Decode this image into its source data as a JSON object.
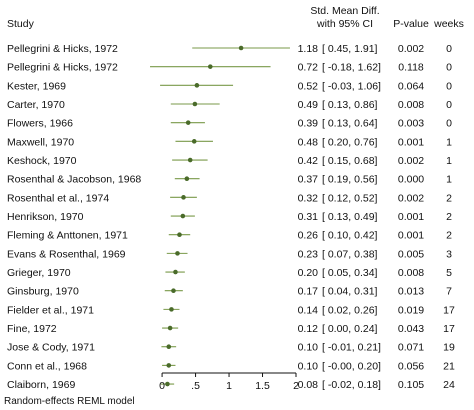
{
  "chart_data": {
    "type": "forest",
    "header": {
      "study": "Study",
      "effect_line1": "Std. Mean Diff.",
      "effect_line2": "with 95% CI",
      "pvalue": "P-value",
      "weeks": "weeks"
    },
    "x_ticks": [
      0,
      0.5,
      1,
      1.5,
      2
    ],
    "x_tick_labels": [
      "0",
      ".5",
      "1",
      "1.5",
      "2"
    ],
    "xlim": [
      -0.27,
      2.0
    ],
    "footnote": "Random-effects REML model",
    "colors": {
      "marker": "#4a6b2a",
      "ci_line": "#7a9a4a",
      "axis": "#111111"
    },
    "rows": [
      {
        "study": "Pellegrini & Hicks, 1972",
        "smd": 1.18,
        "lo": 0.45,
        "hi": 1.91,
        "smd_text": "1.18",
        "ci_text": "[ 0.45,  1.91]",
        "p": "0.002",
        "weeks": "0"
      },
      {
        "study": "Pellegrini & Hicks, 1972",
        "smd": 0.72,
        "lo": -0.18,
        "hi": 1.62,
        "smd_text": "0.72",
        "ci_text": "[ -0.18,  1.62]",
        "p": "0.118",
        "weeks": "0"
      },
      {
        "study": "Kester, 1969",
        "smd": 0.52,
        "lo": -0.03,
        "hi": 1.06,
        "smd_text": "0.52",
        "ci_text": "[ -0.03,  1.06]",
        "p": "0.064",
        "weeks": "0"
      },
      {
        "study": "Carter, 1970",
        "smd": 0.49,
        "lo": 0.13,
        "hi": 0.86,
        "smd_text": "0.49",
        "ci_text": "[ 0.13,  0.86]",
        "p": "0.008",
        "weeks": "0"
      },
      {
        "study": "Flowers, 1966",
        "smd": 0.39,
        "lo": 0.13,
        "hi": 0.64,
        "smd_text": "0.39",
        "ci_text": "[ 0.13,  0.64]",
        "p": "0.003",
        "weeks": "0"
      },
      {
        "study": "Maxwell, 1970",
        "smd": 0.48,
        "lo": 0.2,
        "hi": 0.76,
        "smd_text": "0.48",
        "ci_text": "[ 0.20,  0.76]",
        "p": "0.001",
        "weeks": "1"
      },
      {
        "study": "Keshock, 1970",
        "smd": 0.42,
        "lo": 0.15,
        "hi": 0.68,
        "smd_text": "0.42",
        "ci_text": "[ 0.15,  0.68]",
        "p": "0.002",
        "weeks": "1"
      },
      {
        "study": "Rosenthal & Jacobson, 1968",
        "smd": 0.37,
        "lo": 0.19,
        "hi": 0.56,
        "smd_text": "0.37",
        "ci_text": "[ 0.19,  0.56]",
        "p": "0.000",
        "weeks": "1"
      },
      {
        "study": "Rosenthal et al., 1974",
        "smd": 0.32,
        "lo": 0.12,
        "hi": 0.52,
        "smd_text": "0.32",
        "ci_text": "[ 0.12,  0.52]",
        "p": "0.002",
        "weeks": "2"
      },
      {
        "study": "Henrikson, 1970",
        "smd": 0.31,
        "lo": 0.13,
        "hi": 0.49,
        "smd_text": "0.31",
        "ci_text": "[ 0.13,  0.49]",
        "p": "0.001",
        "weeks": "2"
      },
      {
        "study": "Fleming & Anttonen, 1971",
        "smd": 0.26,
        "lo": 0.1,
        "hi": 0.42,
        "smd_text": "0.26",
        "ci_text": "[ 0.10,  0.42]",
        "p": "0.001",
        "weeks": "2"
      },
      {
        "study": "Evans & Rosenthal, 1969",
        "smd": 0.23,
        "lo": 0.07,
        "hi": 0.38,
        "smd_text": "0.23",
        "ci_text": "[ 0.07,  0.38]",
        "p": "0.005",
        "weeks": "3"
      },
      {
        "study": "Grieger, 1970",
        "smd": 0.2,
        "lo": 0.05,
        "hi": 0.34,
        "smd_text": "0.20",
        "ci_text": "[ 0.05,  0.34]",
        "p": "0.008",
        "weeks": "5"
      },
      {
        "study": "Ginsburg, 1970",
        "smd": 0.17,
        "lo": 0.04,
        "hi": 0.31,
        "smd_text": "0.17",
        "ci_text": "[ 0.04,  0.31]",
        "p": "0.013",
        "weeks": "7"
      },
      {
        "study": "Fielder et al., 1971",
        "smd": 0.14,
        "lo": 0.02,
        "hi": 0.26,
        "smd_text": "0.14",
        "ci_text": "[ 0.02,  0.26]",
        "p": "0.019",
        "weeks": "17"
      },
      {
        "study": "Fine, 1972",
        "smd": 0.12,
        "lo": 0.0,
        "hi": 0.24,
        "smd_text": "0.12",
        "ci_text": "[ 0.00,  0.24]",
        "p": "0.043",
        "weeks": "17"
      },
      {
        "study": "Jose & Cody, 1971",
        "smd": 0.1,
        "lo": -0.01,
        "hi": 0.21,
        "smd_text": "0.10",
        "ci_text": "[ -0.01,  0.21]",
        "p": "0.071",
        "weeks": "19"
      },
      {
        "study": "Conn et al., 1968",
        "smd": 0.1,
        "lo": -0.0,
        "hi": 0.2,
        "smd_text": "0.10",
        "ci_text": "[ -0.00,  0.20]",
        "p": "0.056",
        "weeks": "21"
      },
      {
        "study": "Claiborn, 1969",
        "smd": 0.08,
        "lo": -0.02,
        "hi": 0.18,
        "smd_text": "0.08",
        "ci_text": "[ -0.02,  0.18]",
        "p": "0.105",
        "weeks": "24"
      }
    ]
  }
}
